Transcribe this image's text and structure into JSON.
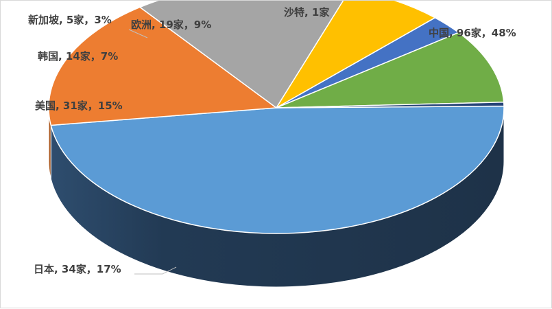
{
  "chart_data": {
    "type": "pie",
    "style": "3d",
    "title": "",
    "slices": [
      {
        "name": "中国",
        "count": 96,
        "percent": 48,
        "label": "中国, 96家，48%",
        "color": "#5B9BD5"
      },
      {
        "name": "日本",
        "count": 34,
        "percent": 17,
        "label": "日本, 34家，17%",
        "color": "#ED7D31"
      },
      {
        "name": "美国",
        "count": 31,
        "percent": 15,
        "label": "美国, 31家，15%",
        "color": "#A5A5A5"
      },
      {
        "name": "韩国",
        "count": 14,
        "percent": 7,
        "label": "韩国, 14家，7%",
        "color": "#FFC000"
      },
      {
        "name": "新加坡",
        "count": 5,
        "percent": 3,
        "label": "新加坡, 5家，3%",
        "color": "#4472C4"
      },
      {
        "name": "欧洲",
        "count": 19,
        "percent": 9,
        "label": "欧洲, 19家，9%",
        "color": "#70AD47"
      },
      {
        "name": "沙特",
        "count": 1,
        "percent": 0.5,
        "label": "沙特, 1家",
        "color": "#264478"
      }
    ],
    "legend": "none",
    "data_labels": "outside"
  }
}
